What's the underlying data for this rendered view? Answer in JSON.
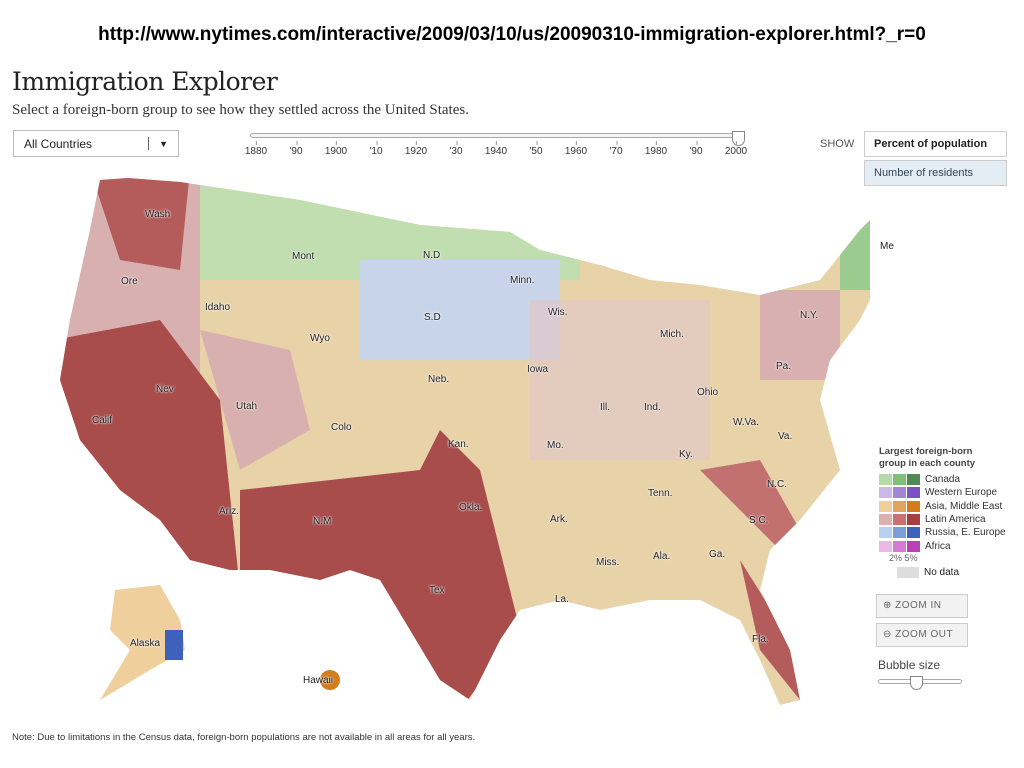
{
  "url": "http://www.nytimes.com/interactive/2009/03/10/us/20090310-immigration-explorer.html?_r=0",
  "title": "Immigration Explorer",
  "subtitle": "Select a foreign-born group to see how they settled across the United States.",
  "country_select": {
    "value": "All Countries"
  },
  "year_slider": {
    "value": 2000,
    "ticks": [
      "1880",
      "'90",
      "1900",
      "'10",
      "1920",
      "'30",
      "1940",
      "'50",
      "1960",
      "'70",
      "1980",
      "'90",
      "2000"
    ]
  },
  "show": {
    "label": "SHOW",
    "options": [
      "Percent of population",
      "Number of residents"
    ],
    "selected": "Percent of population"
  },
  "states": [
    "Wash",
    "Mont",
    "N.D",
    "Minn.",
    "Me",
    "Ore",
    "Idaho",
    "S.D",
    "Wis.",
    "Mich.",
    "N.Y.",
    "Wyo",
    "Neb.",
    "Iowa",
    "Pa.",
    "Nev",
    "Utah",
    "Colo",
    "Ill.",
    "Ind.",
    "Ohio",
    "Calif",
    "Kan.",
    "Mo.",
    "W.Va.",
    "Va.",
    "Ky.",
    "N.C.",
    "Tenn.",
    "Okla.",
    "Ark.",
    "S.C.",
    "Ariz.",
    "N.M",
    "Miss.",
    "Ala.",
    "Ga.",
    "Tex",
    "La.",
    "Fla.",
    "Alaska",
    "Hawaii"
  ],
  "legend": {
    "title": "Largest foreign-born group in each county",
    "items": [
      {
        "name": "Canada",
        "colors": [
          "#b5dba8",
          "#7fbf78",
          "#4f8a55"
        ]
      },
      {
        "name": "Western Europe",
        "colors": [
          "#cdb7e8",
          "#a385d6",
          "#7a52c2"
        ]
      },
      {
        "name": "Asia, Middle East",
        "colors": [
          "#efcf9c",
          "#e0a45c",
          "#d47b1c"
        ]
      },
      {
        "name": "Latin America",
        "colors": [
          "#e0b0b0",
          "#c77272",
          "#a83d3d"
        ]
      },
      {
        "name": "Russia, E. Europe",
        "colors": [
          "#b7d0ee",
          "#7d9fd9",
          "#3e62bb"
        ]
      },
      {
        "name": "Africa",
        "colors": [
          "#ebb8e8",
          "#d47ad3",
          "#bb3fb6"
        ]
      }
    ],
    "scale": "2% 5%",
    "no_data": "No data"
  },
  "zoom_in": "ZOOM IN",
  "zoom_out": "ZOOM OUT",
  "bubble_size": {
    "label": "Bubble size",
    "value": 0.45
  },
  "note": "Note: Due to limitations in the Census data, foreign-born  populations are not available in all areas for all years."
}
